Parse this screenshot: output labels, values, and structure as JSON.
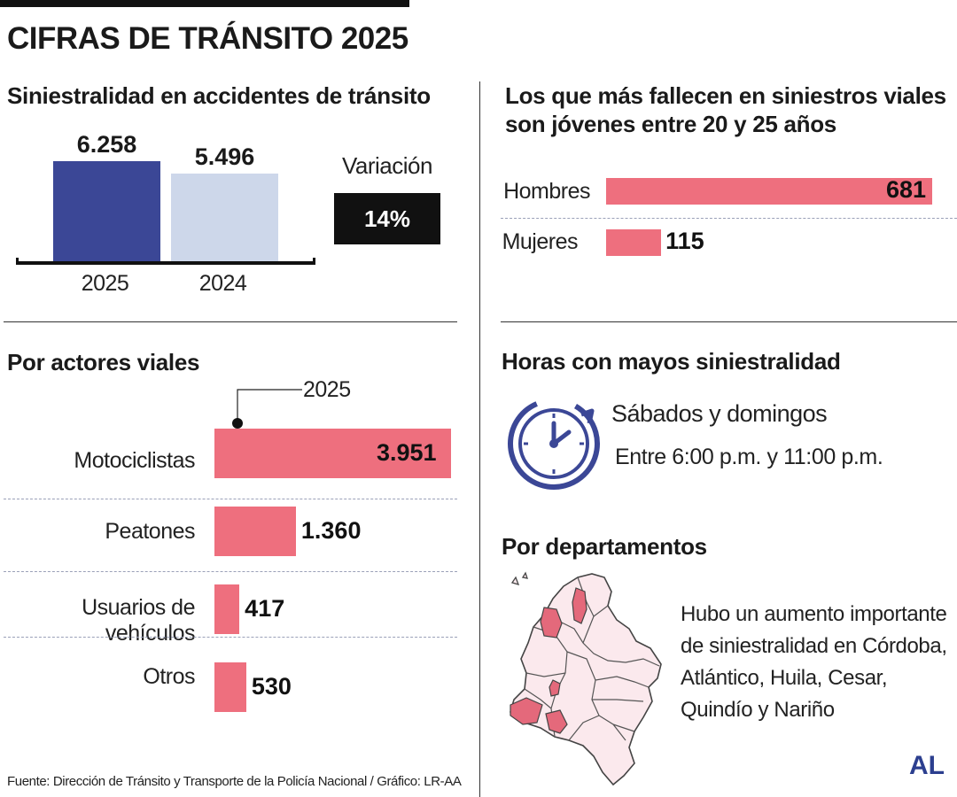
{
  "title": "CIFRAS DE TRÁNSITO 2025",
  "source": "Fuente: Dirección de Tránsito y Transporte de la Policía Nacional / Gráfico: LR-AA",
  "logo_text": "AL",
  "colors": {
    "bar_2025": "#3b4796",
    "bar_2024": "#cdd7ea",
    "accent": "#ee6f7e",
    "icon": "#3b4796",
    "map_fill": "#fbe9ed",
    "map_highlight": "#e4697b"
  },
  "chart_data": [
    {
      "type": "bar",
      "title": "Siniestralidad en accidentes de tránsito",
      "categories": [
        "2025",
        "2024"
      ],
      "values": [
        6258,
        5496
      ],
      "value_labels": [
        "6.258",
        "5.496"
      ],
      "variation_label": "Variación",
      "variation_value": "14%"
    },
    {
      "type": "bar",
      "orientation": "horizontal",
      "title": "Los que más fallecen en siniestros viales son jóvenes entre 20 y 25 años",
      "categories": [
        "Hombres",
        "Mujeres"
      ],
      "values": [
        681,
        115
      ],
      "value_labels": [
        "681",
        "115"
      ]
    },
    {
      "type": "bar",
      "orientation": "horizontal",
      "title": "Por actores viales",
      "annotation": "2025",
      "categories": [
        "Motociclistas",
        "Peatones",
        "Usuarios de vehículos",
        "Otros"
      ],
      "values": [
        3951,
        1360,
        417,
        530
      ],
      "value_labels": [
        "3.951",
        "1.360",
        "417",
        "530"
      ]
    }
  ],
  "hours": {
    "title": "Horas con mayos siniestralidad",
    "days": "Sábados y domingos",
    "range": "Entre 6:00 p.m. y 11:00 p.m.",
    "icon": "clock-icon"
  },
  "departments": {
    "title": "Por departamentos",
    "text_lines": [
      "Hubo un aumento importante",
      "de siniestralidad en Córdoba,",
      "Atlántico, Huila, Cesar,",
      "Quindío y Nariño"
    ],
    "icon": "colombia-map-icon"
  }
}
